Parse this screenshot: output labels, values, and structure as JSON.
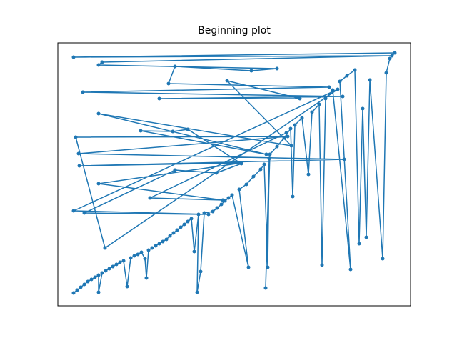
{
  "chart_data": {
    "type": "line",
    "title": "Beginning plot",
    "color": "#1f77b4",
    "marker": "o",
    "xlim": [
      81,
      575
    ],
    "ylim": [
      52,
      420
    ],
    "x": [
      103,
      108,
      113,
      118,
      123,
      128,
      133,
      138,
      138,
      143,
      148,
      153,
      158,
      163,
      168,
      173,
      178,
      183,
      188,
      193,
      198,
      203,
      205,
      208,
      213,
      218,
      223,
      228,
      233,
      238,
      243,
      248,
      253,
      258,
      263,
      268,
      272,
      278,
      276,
      281,
      286,
      298,
      304,
      310,
      315,
      320,
      325,
      348,
      335,
      345,
      355,
      365,
      370,
      375,
      377,
      372,
      378,
      388,
      398,
      407,
      410,
      413,
      423,
      432,
      437,
      447,
      451,
      456,
      466,
      491,
      476,
      486,
      497,
      503,
      508,
      513,
      518,
      536,
      541,
      546,
      553,
      103,
      549,
      143,
      138,
      388,
      352,
      245,
      236,
      461,
      116,
      480,
      223,
      420,
      318,
      408,
      138,
      373,
      197,
      242,
      263,
      338,
      303,
      245,
      118,
      292,
      103,
      473,
      147,
      106,
      403,
      110,
      482,
      111,
      338,
      138,
      312,
      210,
      401
    ],
    "values": [
      70,
      74,
      78,
      82,
      86,
      89,
      92,
      95,
      71,
      98,
      101,
      104,
      107,
      110,
      113,
      115,
      79,
      119,
      122,
      124,
      127,
      118,
      91,
      130,
      133,
      136,
      139,
      142,
      145,
      150,
      154,
      158,
      162,
      166,
      170,
      174,
      128,
      180,
      71,
      100,
      182,
      184,
      189,
      194,
      199,
      203,
      207,
      106,
      215,
      222,
      233,
      243,
      250,
      106,
      258,
      77,
      264,
      275,
      287,
      300,
      205,
      305,
      315,
      236,
      323,
      334,
      109,
      342,
      354,
      103,
      366,
      374,
      382,
      139,
      328,
      148,
      368,
      118,
      378,
      398,
      406,
      400,
      402,
      393,
      389,
      384,
      381,
      387,
      363,
      358,
      351,
      345,
      342,
      342,
      367,
      276,
      321,
      264,
      297,
      296,
      299,
      251,
      238,
      242,
      182,
      180,
      185,
      355,
      133,
      288,
      289,
      265,
      257,
      248,
      252,
      223,
      200,
      203,
      294
    ]
  }
}
